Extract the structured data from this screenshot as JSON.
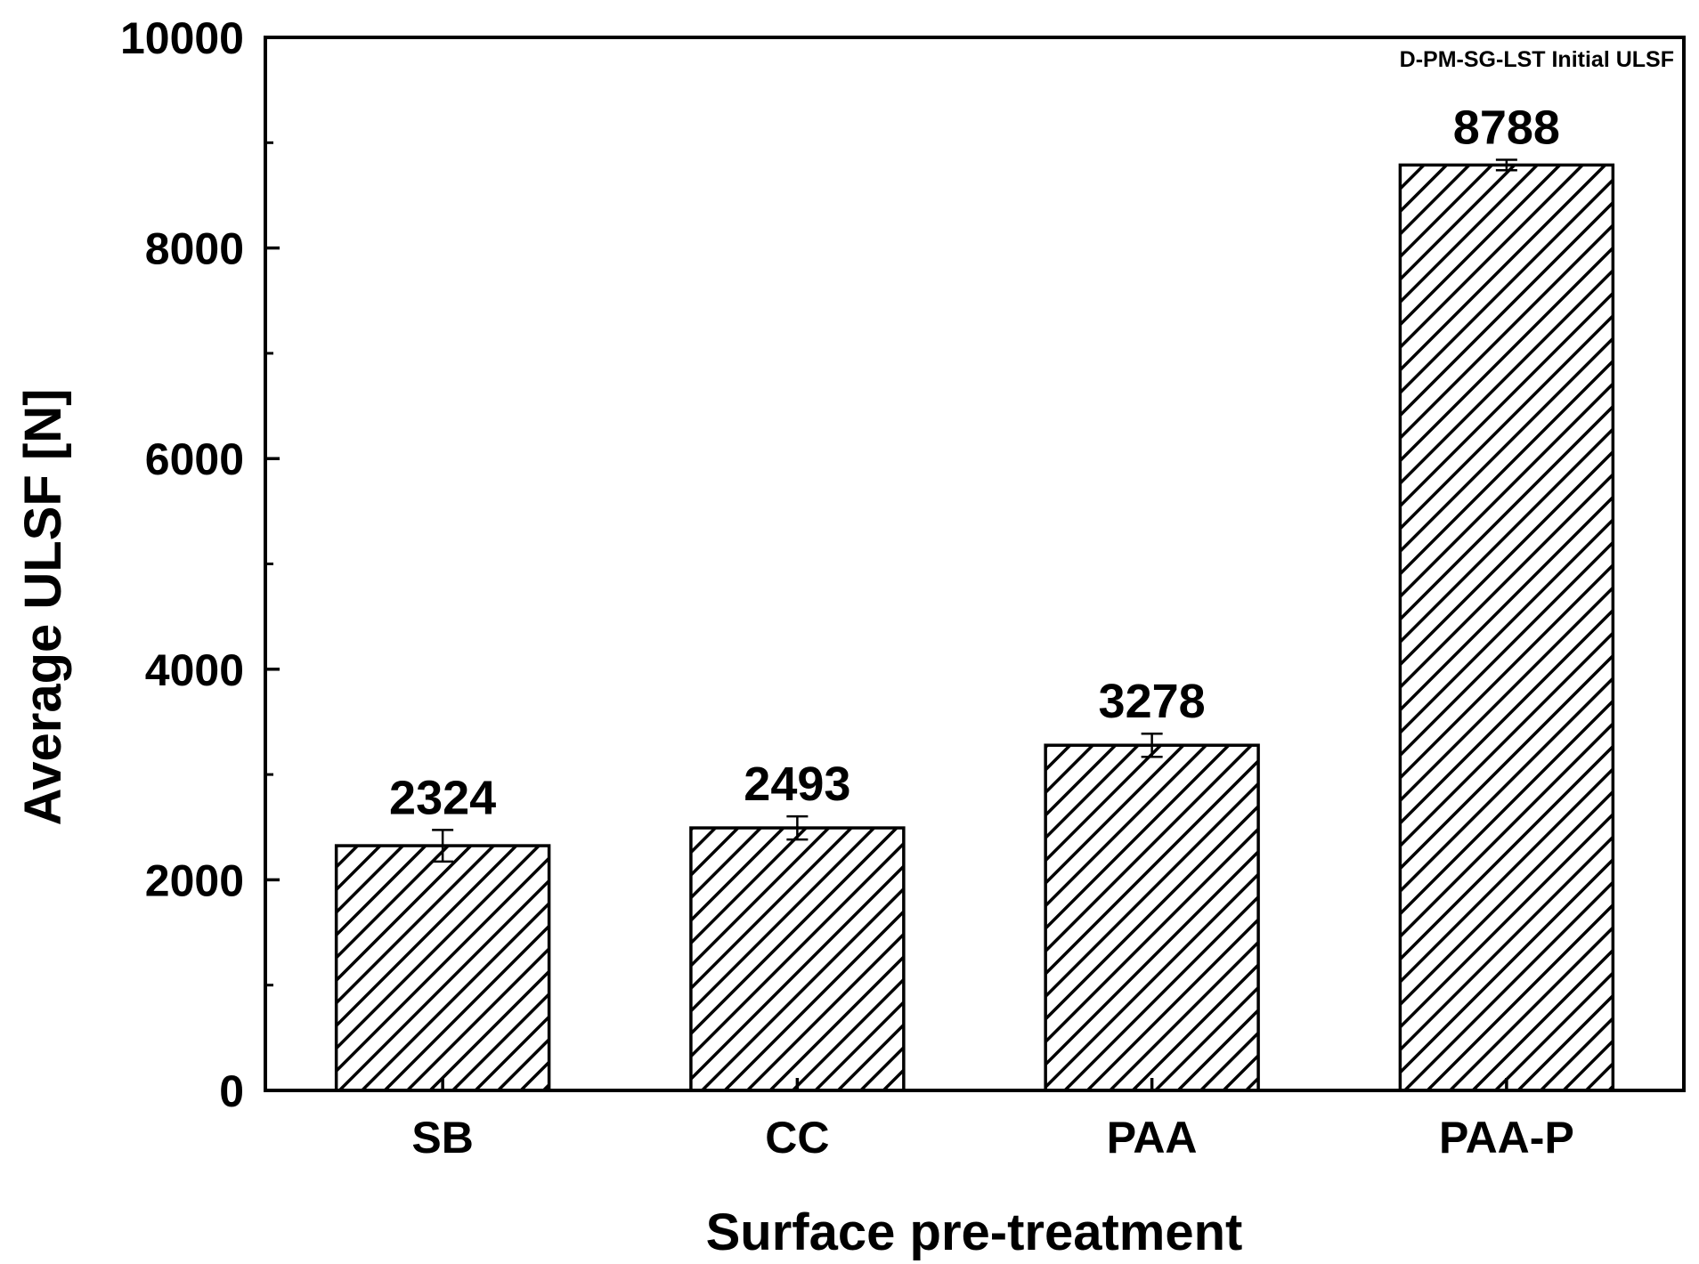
{
  "chart_data": {
    "type": "bar",
    "categories": [
      "SB",
      "CC",
      "PAA",
      "PAA-P"
    ],
    "values": [
      2324,
      2493,
      3278,
      8788
    ],
    "errors": [
      150,
      110,
      110,
      50
    ],
    "data_labels": [
      "2324",
      "2493",
      "3278",
      "8788"
    ],
    "annotation": "D-PM-SG-LST Initial ULSF",
    "xlabel": "Surface pre-treatment",
    "ylabel": "Average ULSF [N]",
    "ylim": [
      0,
      10000
    ],
    "yticks": [
      0,
      2000,
      4000,
      6000,
      8000,
      10000
    ],
    "ytick_labels": [
      "0",
      "2000",
      "4000",
      "6000",
      "8000",
      "10000"
    ],
    "y_minor_step": 1000,
    "grid": false,
    "bar_fill": "diagonal-hatch",
    "colors": {
      "ink": "#000000",
      "background": "#ffffff"
    }
  }
}
